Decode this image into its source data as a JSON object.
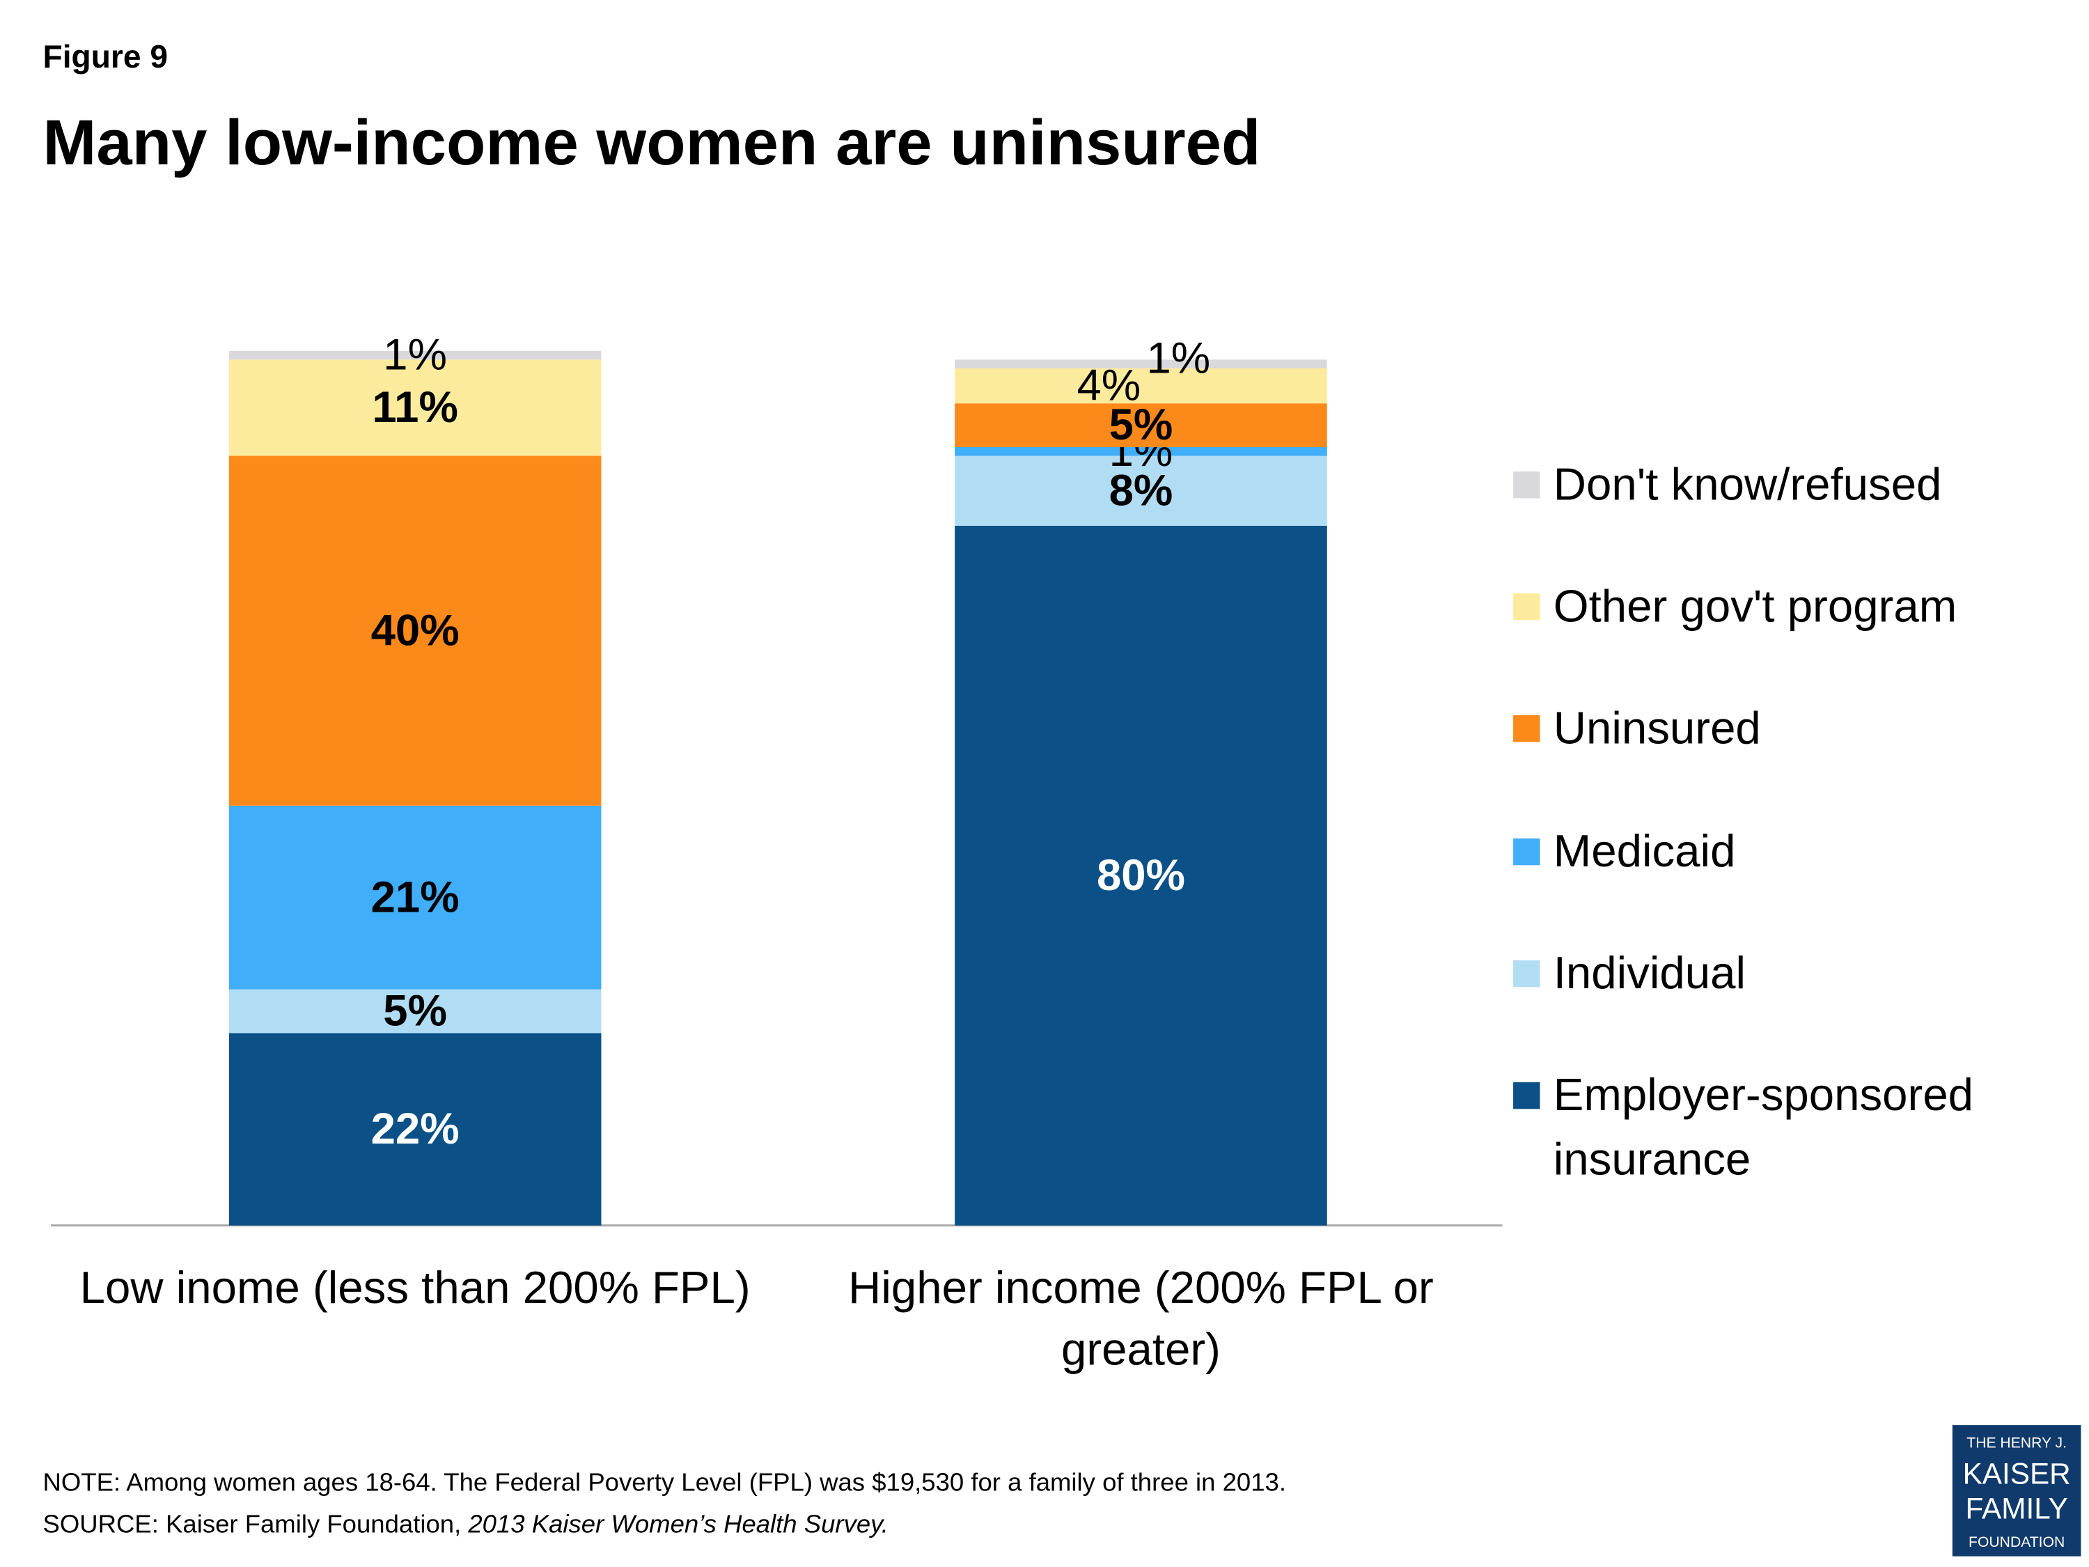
{
  "figure_label": "Figure 9",
  "chart_data": {
    "type": "stacked-bar",
    "title": "Many low-income women are uninsured",
    "categories": [
      "Low inome (less than 200% FPL)",
      "Higher income (200% FPL or greater)"
    ],
    "ylim": [
      0,
      100
    ],
    "series": [
      {
        "name": "Employer-sponsored insurance",
        "color": "#0b5086",
        "values": [
          22,
          80
        ],
        "value_labels": [
          "22%",
          "80%"
        ]
      },
      {
        "name": "Individual",
        "color": "#b1ddf4",
        "values": [
          5,
          8
        ],
        "value_labels": [
          "5%",
          "8%"
        ]
      },
      {
        "name": "Medicaid",
        "color": "#41aefa",
        "values": [
          21,
          1
        ],
        "value_labels": [
          "21%",
          "1%"
        ]
      },
      {
        "name": "Uninsured",
        "color": "#fc8a1a",
        "values": [
          40,
          5
        ],
        "value_labels": [
          "40%",
          "5%"
        ]
      },
      {
        "name": "Other gov't program",
        "color": "#fdeb9d",
        "values": [
          11,
          4
        ],
        "value_labels": [
          "11%",
          "4%"
        ]
      },
      {
        "name": "Don't know/refused",
        "color": "#d9d9dd",
        "values": [
          1,
          1
        ],
        "value_labels": [
          "1%",
          "1%"
        ]
      }
    ],
    "legend": "right"
  },
  "note": "NOTE: Among women ages 18-64. The Federal Poverty Level (FPL) was $19,530  for a family of three in 2013.",
  "source": {
    "text": "SOURCE: Kaiser Family Foundation, ",
    "italic": "2013 Kaiser Women’s Health Survey."
  },
  "logo": {
    "lines": [
      "THE HENRY J.",
      "KAISER",
      "FAMILY",
      "FOUNDATION"
    ]
  }
}
